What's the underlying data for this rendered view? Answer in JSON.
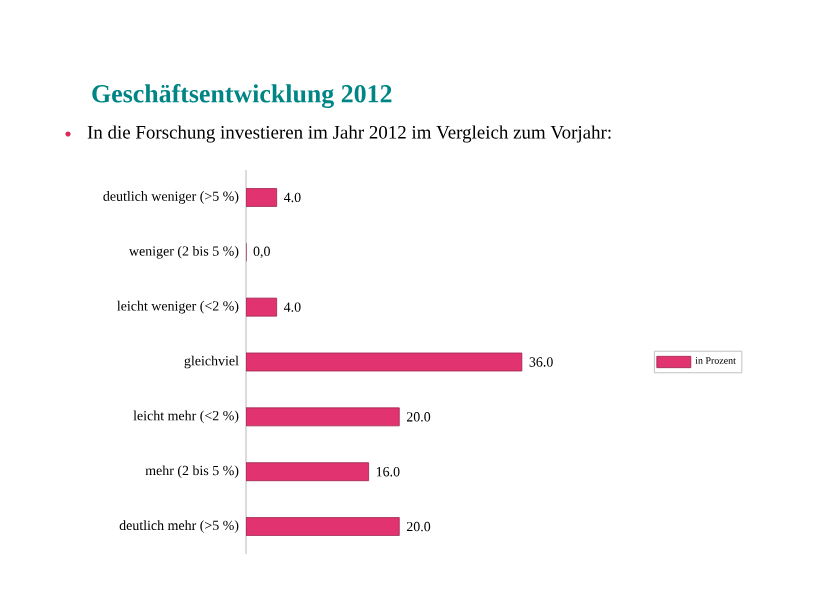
{
  "chart_data": {
    "type": "bar",
    "orientation": "horizontal",
    "title": "Geschäftsentwicklung 2012",
    "subtitle": "In die Forschung investieren im Jahr 2012 im Vergleich zum Vorjahr:",
    "categories": [
      "deutlich weniger (>5 %)",
      "weniger (2 bis 5 %)",
      "leicht weniger (<2 %)",
      "gleichviel",
      "leicht mehr (<2 %)",
      "mehr (2 bis 5 %)",
      "deutlich mehr (>5 %)"
    ],
    "series": [
      {
        "name": "in Prozent",
        "color": "#e0336f",
        "values": [
          4.0,
          0.0,
          4.0,
          36.0,
          20.0,
          16.0,
          20.0
        ],
        "value_labels": [
          "4.0",
          "0,0",
          "4.0",
          "36.0",
          "20.0",
          "16.0",
          "20.0"
        ]
      }
    ],
    "legend": "right"
  }
}
